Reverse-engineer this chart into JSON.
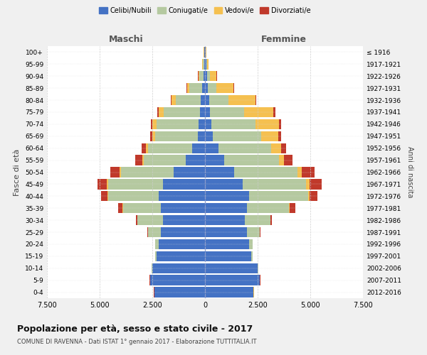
{
  "age_groups": [
    "0-4",
    "5-9",
    "10-14",
    "15-19",
    "20-24",
    "25-29",
    "30-34",
    "35-39",
    "40-44",
    "45-49",
    "50-54",
    "55-59",
    "60-64",
    "65-69",
    "70-74",
    "75-79",
    "80-84",
    "85-89",
    "90-94",
    "95-99",
    "100+"
  ],
  "birth_years": [
    "2012-2016",
    "2007-2011",
    "2002-2006",
    "1997-2001",
    "1992-1996",
    "1987-1991",
    "1982-1986",
    "1977-1981",
    "1972-1976",
    "1967-1971",
    "1962-1966",
    "1957-1961",
    "1952-1956",
    "1947-1951",
    "1942-1946",
    "1937-1941",
    "1932-1936",
    "1927-1931",
    "1922-1926",
    "1917-1921",
    "≤ 1916"
  ],
  "male": {
    "celibi": [
      2400,
      2600,
      2500,
      2300,
      2200,
      2100,
      2000,
      2100,
      2200,
      2000,
      1500,
      900,
      600,
      350,
      300,
      250,
      200,
      150,
      80,
      50,
      30
    ],
    "coniugati": [
      10,
      10,
      20,
      50,
      150,
      600,
      1200,
      1800,
      2400,
      2600,
      2500,
      2000,
      2100,
      2000,
      2000,
      1700,
      1200,
      600,
      200,
      60,
      20
    ],
    "vedovi": [
      5,
      5,
      5,
      5,
      5,
      5,
      5,
      10,
      30,
      50,
      60,
      60,
      100,
      150,
      200,
      250,
      200,
      100,
      40,
      10,
      5
    ],
    "divorziati": [
      5,
      5,
      5,
      5,
      10,
      30,
      80,
      200,
      300,
      450,
      450,
      350,
      200,
      100,
      80,
      80,
      30,
      20,
      10,
      5,
      5
    ]
  },
  "female": {
    "nubili": [
      2300,
      2600,
      2500,
      2200,
      2100,
      2000,
      1900,
      2000,
      2100,
      1800,
      1400,
      900,
      650,
      380,
      300,
      250,
      200,
      150,
      100,
      60,
      30
    ],
    "coniugate": [
      10,
      10,
      20,
      50,
      150,
      600,
      1200,
      2000,
      2800,
      3000,
      3000,
      2600,
      2500,
      2300,
      2100,
      1600,
      900,
      400,
      150,
      40,
      15
    ],
    "vedove": [
      5,
      5,
      5,
      5,
      5,
      5,
      10,
      30,
      80,
      150,
      200,
      250,
      450,
      800,
      1100,
      1400,
      1300,
      800,
      300,
      60,
      10
    ],
    "divorziate": [
      5,
      5,
      5,
      5,
      10,
      30,
      80,
      250,
      350,
      600,
      600,
      400,
      250,
      120,
      100,
      80,
      30,
      20,
      10,
      5,
      5
    ]
  },
  "colors": {
    "celibi": "#4472C4",
    "coniugati": "#B5C9A0",
    "vedovi": "#F5C050",
    "divorziati": "#C0392B"
  },
  "xlim": 7500,
  "title": "Popolazione per età, sesso e stato civile - 2017",
  "subtitle": "COMUNE DI RAVENNA - Dati ISTAT 1° gennaio 2017 - Elaborazione TUTTITALIA.IT",
  "xlabel_left": "Maschi",
  "xlabel_right": "Femmine",
  "ylabel_left": "Fasce di età",
  "ylabel_right": "Anni di nascita",
  "legend_labels": [
    "Celibi/Nubili",
    "Coniugati/e",
    "Vedovi/e",
    "Divorziati/e"
  ],
  "bg_color": "#f0f0f0",
  "plot_bg_color": "#ffffff"
}
